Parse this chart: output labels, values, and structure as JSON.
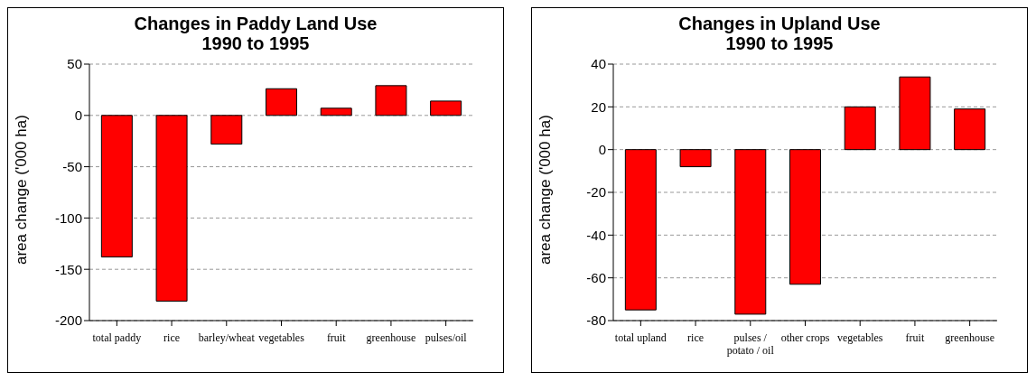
{
  "chart_data": [
    {
      "type": "bar",
      "title": "Changes in Paddy Land Use\n1990 to 1995",
      "ylabel": "area change ('000 ha)",
      "categories": [
        "total paddy",
        "rice",
        "barley/wheat",
        "vegetables",
        "fruit",
        "greenhouse",
        "pulses/oil"
      ],
      "values": [
        -138,
        -181,
        -28,
        26,
        7,
        29,
        14
      ],
      "color": "#ff0000",
      "ylim": [
        -200,
        50
      ],
      "yticks": [
        -200,
        -150,
        -100,
        -50,
        0,
        50
      ],
      "grid": "y"
    },
    {
      "type": "bar",
      "title": "Changes in Upland Use\n1990 to 1995",
      "ylabel": "area change ('000 ha)",
      "categories": [
        "total upland",
        "rice",
        "pulses / potato / oil",
        "other crops",
        "vegetables",
        "fruit",
        "greenhouse"
      ],
      "values": [
        -75,
        -8,
        -77,
        -63,
        20,
        34,
        19
      ],
      "color": "#ff0000",
      "ylim": [
        -80,
        40
      ],
      "yticks": [
        -80,
        -60,
        -40,
        -20,
        0,
        20,
        40
      ],
      "grid": "y"
    }
  ]
}
